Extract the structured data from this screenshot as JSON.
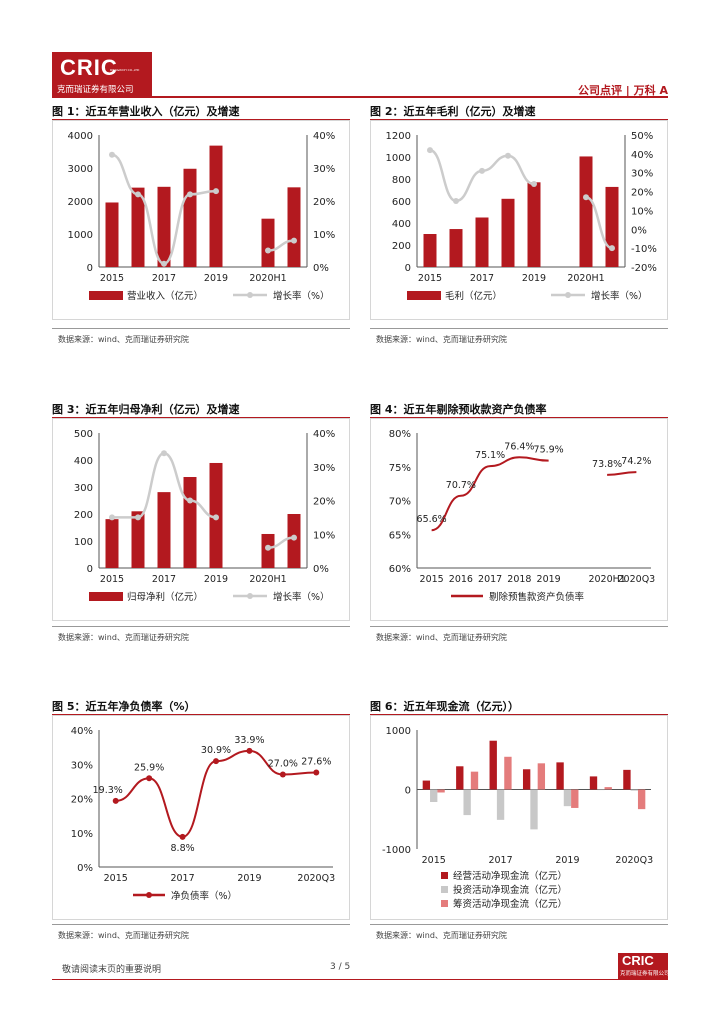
{
  "header": {
    "logo_text": "CRIC",
    "logo_sub": "克而瑞证券有限公司",
    "logo_tiny": "RICK&RICH CO.,LTD",
    "right_text": "公司点评 | 万科 A"
  },
  "footer": {
    "note": "敬请阅读末页的重要说明",
    "page": "3 / 5",
    "logo_text": "CRIC",
    "logo_sub": "克而瑞证券有限公司"
  },
  "colors": {
    "bar": "#b3191f",
    "line": "#cccccc",
    "accent": "#b3191f",
    "gray_bar": "#c8c8c8",
    "pink_bar": "#e47c7c"
  },
  "charts": [
    {
      "title": "图 1：近五年营业收入（亿元）及增速",
      "source": "数据来源：wind、克而瑞证券研究院",
      "chart_data": {
        "type": "bar",
        "categories": [
          "2015",
          "2016",
          "2017",
          "2018",
          "2019",
          "",
          "2020H1",
          "2020Q3"
        ],
        "xticklabels": [
          "2015",
          "2017",
          "2019",
          "2020H1"
        ],
        "series": [
          {
            "name": "营业收入（亿元）",
            "axis": "left",
            "values": [
              1955,
              2405,
              2430,
              2977,
              3678,
              null,
              1464,
              2414
            ]
          },
          {
            "name": "增长率（%）",
            "type": "line",
            "axis": "right",
            "values": [
              34,
              22,
              1,
              22,
              23,
              null,
              5,
              8
            ]
          }
        ],
        "ylim_left": [
          0,
          4000
        ],
        "yticks_left": [
          "0",
          "1000",
          "2000",
          "3000",
          "4000"
        ],
        "ylim_right": [
          0,
          40
        ],
        "yticks_right": [
          "0%",
          "10%",
          "20%",
          "30%",
          "40%"
        ],
        "legend": [
          "营业收入（亿元）",
          "增长率（%）"
        ]
      }
    },
    {
      "title": "图 2：近五年毛利（亿元）及增速",
      "source": "数据来源：wind、克而瑞证券研究院",
      "chart_data": {
        "type": "bar",
        "categories": [
          "2015",
          "2016",
          "2017",
          "2018",
          "2019",
          "",
          "2020H1",
          "2020Q3"
        ],
        "xticklabels": [
          "2015",
          "2017",
          "2019",
          "2020H1"
        ],
        "series": [
          {
            "name": "毛利（亿元）",
            "axis": "left",
            "values": [
              300,
              345,
              450,
              620,
              770,
              null,
              1005,
              728
            ]
          },
          {
            "name": "增长率（%）",
            "type": "line",
            "axis": "right",
            "values": [
              42,
              15,
              31,
              39,
              24,
              null,
              17,
              -10
            ]
          }
        ],
        "ylim_left": [
          0,
          1200
        ],
        "yticks_left": [
          "0",
          "200",
          "400",
          "600",
          "800",
          "1000",
          "1200"
        ],
        "ylim_right": [
          -20,
          50
        ],
        "yticks_right": [
          "-20%",
          "-10%",
          "0%",
          "10%",
          "20%",
          "30%",
          "40%",
          "50%"
        ],
        "legend": [
          "毛利（亿元）",
          "增长率（%）"
        ]
      }
    },
    {
      "title": "图 3：近五年归母净利（亿元）及增速",
      "source": "数据来源：wind、克而瑞证券研究院",
      "chart_data": {
        "type": "bar",
        "categories": [
          "2015",
          "2016",
          "2017",
          "2018",
          "2019",
          "",
          "2020H1",
          "2020Q3"
        ],
        "xticklabels": [
          "2015",
          "2017",
          "2019",
          "2020H1"
        ],
        "series": [
          {
            "name": "归母净利（亿元）",
            "axis": "left",
            "values": [
              181,
              210,
              281,
              337,
              389,
              null,
              126,
              200
            ]
          },
          {
            "name": "增长率（%）",
            "type": "line",
            "axis": "right",
            "values": [
              15,
              15,
              34,
              20,
              15,
              null,
              6,
              9
            ]
          }
        ],
        "ylim_left": [
          0,
          500
        ],
        "yticks_left": [
          "0",
          "100",
          "200",
          "300",
          "400",
          "500"
        ],
        "ylim_right": [
          0,
          40
        ],
        "yticks_right": [
          "0%",
          "10%",
          "20%",
          "30%",
          "40%"
        ],
        "legend": [
          "归母净利（亿元）",
          "增长率（%）"
        ]
      }
    },
    {
      "title": "图 4：近五年剔除预收款资产负债率",
      "source": "数据来源：wind、克而瑞证券研究院",
      "chart_data": {
        "type": "line",
        "categories": [
          "2015",
          "2016",
          "2017",
          "2018",
          "2019",
          "",
          "2020H1",
          "2020Q3"
        ],
        "xticklabels": [
          "2015",
          "2016",
          "2017",
          "2018",
          "2019",
          "2020H1",
          "2020Q3"
        ],
        "series": [
          {
            "name": "剔除预售款资产负债率",
            "values": [
              65.6,
              70.7,
              75.1,
              76.4,
              75.9,
              null,
              73.8,
              74.2
            ],
            "labels": [
              "65.6%",
              "70.7%",
              "75.1%",
              "76.4%",
              "75.9%",
              "",
              "73.8%",
              "74.2%"
            ]
          }
        ],
        "ylim": [
          60,
          80
        ],
        "yticks": [
          "60%",
          "65%",
          "70%",
          "75%",
          "80%"
        ],
        "legend": [
          "剔除预售款资产负债率"
        ]
      }
    },
    {
      "title": "图 5：近五年净负债率（%）",
      "source": "数据来源：wind、克而瑞证券研究院",
      "chart_data": {
        "type": "line",
        "categories": [
          "2015",
          "2016",
          "2017",
          "2018",
          "2019",
          "2020H1",
          "2020Q3"
        ],
        "xticklabels": [
          "2015",
          "2017",
          "2019",
          "2020Q3"
        ],
        "series": [
          {
            "name": "净负债率（%）",
            "values": [
              19.3,
              25.9,
              8.8,
              30.9,
              33.9,
              27.0,
              27.6
            ],
            "labels": [
              "19.3%",
              "25.9%",
              "8.8%",
              "30.9%",
              "33.9%",
              "27.0%",
              "27.6%"
            ]
          }
        ],
        "ylim": [
          0,
          40
        ],
        "yticks": [
          "0%",
          "10%",
          "20%",
          "30%",
          "40%"
        ],
        "legend": [
          "净负债率（%）"
        ]
      }
    },
    {
      "title": "图 6：近五年现金流（亿元））",
      "source": "数据来源：wind、克而瑞证券研究院",
      "chart_data": {
        "type": "bar",
        "categories": [
          "2015",
          "2016",
          "2017",
          "2018",
          "2019",
          "2020H1",
          "2020Q3"
        ],
        "xticklabels": [
          "2015",
          "2017",
          "2019",
          "2020Q3"
        ],
        "series": [
          {
            "name": "经营活动净现金流（亿元）",
            "values": [
              150,
              390,
              820,
              340,
              456,
              220,
              330
            ]
          },
          {
            "name": "投资活动净现金流（亿元）",
            "values": [
              -210,
              -430,
              -510,
              -670,
              -280,
              -10,
              -20
            ]
          },
          {
            "name": "筹资活动净现金流（亿元）",
            "values": [
              -50,
              300,
              550,
              440,
              -310,
              40,
              -330
            ]
          }
        ],
        "ylim": [
          -1000,
          1000
        ],
        "yticks": [
          "-1000",
          "0",
          "1000"
        ],
        "legend": [
          "经营活动净现金流（亿元）",
          "投资活动净现金流（亿元）",
          "筹资活动净现金流（亿元）"
        ]
      }
    }
  ]
}
